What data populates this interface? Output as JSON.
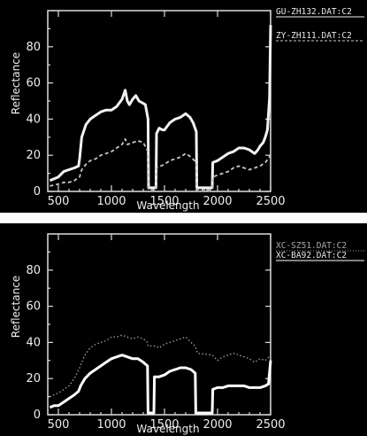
{
  "chart_data": [
    {
      "type": "line",
      "xlabel": "Wavelength",
      "ylabel": "Reflectance",
      "xlim": [
        400,
        2500
      ],
      "ylim": [
        0,
        100
      ],
      "xticks": [
        "500",
        "1000",
        "1500",
        "2000",
        "2500"
      ],
      "yticks": [
        "0",
        "20",
        "40",
        "60",
        "80"
      ],
      "legend_position": "top-right",
      "series": [
        {
          "name": "GU-ZH132.DAT:C2",
          "color": "#f2f2f2",
          "style": "solid",
          "width": 3,
          "points": [
            [
              420,
              6
            ],
            [
              500,
              8
            ],
            [
              550,
              11
            ],
            [
              600,
              12
            ],
            [
              650,
              13
            ],
            [
              690,
              14
            ],
            [
              700,
              18
            ],
            [
              720,
              30
            ],
            [
              760,
              37
            ],
            [
              800,
              40
            ],
            [
              850,
              42
            ],
            [
              900,
              44
            ],
            [
              950,
              45
            ],
            [
              1000,
              45
            ],
            [
              1050,
              47
            ],
            [
              1100,
              51
            ],
            [
              1130,
              56
            ],
            [
              1150,
              50
            ],
            [
              1170,
              48
            ],
            [
              1200,
              51
            ],
            [
              1230,
              53
            ],
            [
              1260,
              50
            ],
            [
              1290,
              49
            ],
            [
              1320,
              48
            ],
            [
              1345,
              40
            ],
            [
              1350,
              2
            ],
            [
              1420,
              2
            ],
            [
              1425,
              32
            ],
            [
              1450,
              35
            ],
            [
              1480,
              34
            ],
            [
              1500,
              34
            ],
            [
              1550,
              38
            ],
            [
              1600,
              40
            ],
            [
              1650,
              41
            ],
            [
              1700,
              43
            ],
            [
              1740,
              41
            ],
            [
              1770,
              38
            ],
            [
              1800,
              33
            ],
            [
              1805,
              2
            ],
            [
              1950,
              2
            ],
            [
              1955,
              16
            ],
            [
              2000,
              17
            ],
            [
              2050,
              19
            ],
            [
              2100,
              21
            ],
            [
              2150,
              22
            ],
            [
              2200,
              24
            ],
            [
              2250,
              24
            ],
            [
              2300,
              23
            ],
            [
              2350,
              21
            ],
            [
              2380,
              23
            ],
            [
              2400,
              25
            ],
            [
              2430,
              27
            ],
            [
              2450,
              30
            ],
            [
              2470,
              34
            ],
            [
              2490,
              52
            ],
            [
              2500,
              92
            ]
          ]
        },
        {
          "name": "ZY-ZH111.DAT:C2",
          "color": "#c8c8c8",
          "style": "dashed",
          "width": 1.8,
          "points": [
            [
              420,
              3
            ],
            [
              500,
              4
            ],
            [
              550,
              5
            ],
            [
              600,
              5
            ],
            [
              650,
              6
            ],
            [
              700,
              8
            ],
            [
              720,
              12
            ],
            [
              760,
              15
            ],
            [
              800,
              17
            ],
            [
              850,
              18
            ],
            [
              900,
              20
            ],
            [
              950,
              21
            ],
            [
              1000,
              22
            ],
            [
              1050,
              24
            ],
            [
              1100,
              26
            ],
            [
              1130,
              29
            ],
            [
              1150,
              26
            ],
            [
              1200,
              27
            ],
            [
              1250,
              28
            ],
            [
              1300,
              27
            ],
            [
              1345,
              22
            ],
            [
              1350,
              1
            ],
            [
              1420,
              1
            ],
            [
              1425,
              13
            ],
            [
              1500,
              15
            ],
            [
              1550,
              17
            ],
            [
              1600,
              18
            ],
            [
              1650,
              19
            ],
            [
              1700,
              21
            ],
            [
              1750,
              19
            ],
            [
              1800,
              16
            ],
            [
              1805,
              1
            ],
            [
              1950,
              1
            ],
            [
              1955,
              8
            ],
            [
              2000,
              9
            ],
            [
              2050,
              10
            ],
            [
              2100,
              11
            ],
            [
              2150,
              13
            ],
            [
              2200,
              14
            ],
            [
              2250,
              13
            ],
            [
              2300,
              12
            ],
            [
              2350,
              13
            ],
            [
              2400,
              14
            ],
            [
              2450,
              16
            ],
            [
              2500,
              20
            ]
          ]
        }
      ]
    },
    {
      "type": "line",
      "xlabel": "Wavelength",
      "ylabel": "Reflectance",
      "xlim": [
        400,
        2500
      ],
      "ylim": [
        0,
        100
      ],
      "xticks": [
        "500",
        "1000",
        "1500",
        "2000",
        "2500"
      ],
      "yticks": [
        "0",
        "20",
        "40",
        "60",
        "80"
      ],
      "legend_position": "top-right",
      "series": [
        {
          "name": "XC-SZ51.DAT:C2",
          "color": "#9a9a9a",
          "style": "dotted",
          "width": 1.4,
          "points": [
            [
              420,
              10
            ],
            [
              500,
              12
            ],
            [
              600,
              16
            ],
            [
              650,
              20
            ],
            [
              700,
              26
            ],
            [
              750,
              33
            ],
            [
              800,
              37
            ],
            [
              850,
              39
            ],
            [
              900,
              40
            ],
            [
              950,
              41
            ],
            [
              1000,
              43
            ],
            [
              1050,
              43
            ],
            [
              1100,
              44
            ],
            [
              1150,
              43
            ],
            [
              1200,
              42
            ],
            [
              1250,
              43
            ],
            [
              1300,
              42
            ],
            [
              1340,
              40
            ],
            [
              1345,
              38
            ],
            [
              1420,
              38
            ],
            [
              1450,
              37
            ],
            [
              1500,
              39
            ],
            [
              1550,
              40
            ],
            [
              1600,
              41
            ],
            [
              1650,
              42
            ],
            [
              1700,
              43
            ],
            [
              1750,
              40
            ],
            [
              1790,
              38
            ],
            [
              1810,
              34
            ],
            [
              1950,
              33
            ],
            [
              2000,
              30
            ],
            [
              2050,
              32
            ],
            [
              2100,
              33
            ],
            [
              2150,
              34
            ],
            [
              2200,
              33
            ],
            [
              2250,
              32
            ],
            [
              2300,
              31
            ],
            [
              2350,
              29
            ],
            [
              2400,
              31
            ],
            [
              2450,
              30
            ],
            [
              2500,
              33
            ]
          ]
        },
        {
          "name": "XC-BA92.DAT:C2",
          "color": "#ffffff",
          "style": "solid",
          "width": 3,
          "points": [
            [
              420,
              4
            ],
            [
              460,
              5
            ],
            [
              500,
              5
            ],
            [
              550,
              7
            ],
            [
              600,
              9
            ],
            [
              650,
              11
            ],
            [
              690,
              13
            ],
            [
              710,
              16
            ],
            [
              750,
              20
            ],
            [
              800,
              23
            ],
            [
              850,
              25
            ],
            [
              900,
              27
            ],
            [
              950,
              29
            ],
            [
              1000,
              31
            ],
            [
              1050,
              32
            ],
            [
              1100,
              33
            ],
            [
              1150,
              32
            ],
            [
              1200,
              31
            ],
            [
              1250,
              31
            ],
            [
              1300,
              29
            ],
            [
              1340,
              27
            ],
            [
              1345,
              1
            ],
            [
              1400,
              1
            ],
            [
              1405,
              21
            ],
            [
              1450,
              21
            ],
            [
              1500,
              22
            ],
            [
              1550,
              24
            ],
            [
              1600,
              25
            ],
            [
              1650,
              26
            ],
            [
              1700,
              26
            ],
            [
              1750,
              25
            ],
            [
              1790,
              23
            ],
            [
              1795,
              1
            ],
            [
              1950,
              1
            ],
            [
              1955,
              14
            ],
            [
              2000,
              15
            ],
            [
              2050,
              15
            ],
            [
              2100,
              16
            ],
            [
              2150,
              16
            ],
            [
              2200,
              16
            ],
            [
              2250,
              16
            ],
            [
              2300,
              15
            ],
            [
              2350,
              15
            ],
            [
              2400,
              15
            ],
            [
              2450,
              16
            ],
            [
              2480,
              17
            ],
            [
              2500,
              30
            ]
          ]
        }
      ]
    }
  ]
}
